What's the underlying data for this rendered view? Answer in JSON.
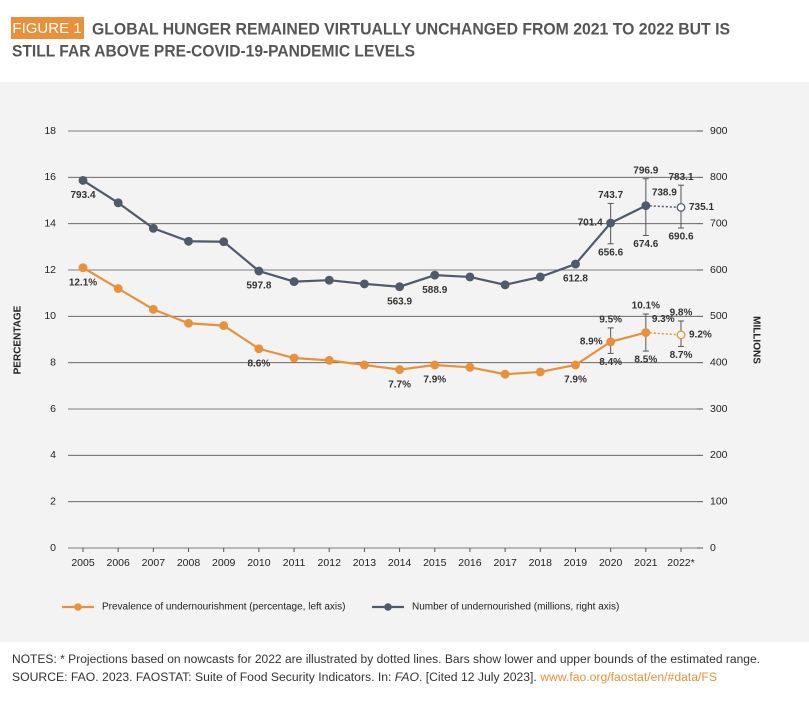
{
  "chart_data": {
    "type": "line",
    "badge": "FIGURE 1",
    "title_lines": [
      "GLOBAL HUNGER REMAINED VIRTUALLY UNCHANGED FROM 2021 TO 2022 BUT IS",
      "STILL FAR ABOVE PRE-COVID-19-PANDEMIC LEVELS"
    ],
    "ylabel": "PERCENTAGE",
    "y2label": "MILLIONS",
    "categories": [
      "2005",
      "2006",
      "2007",
      "2008",
      "2009",
      "2010",
      "2011",
      "2012",
      "2013",
      "2014",
      "2015",
      "2016",
      "2017",
      "2018",
      "2019",
      "2020",
      "2021",
      "2022*"
    ],
    "projected": [
      false,
      false,
      false,
      false,
      false,
      false,
      false,
      false,
      false,
      false,
      false,
      false,
      false,
      false,
      false,
      false,
      false,
      true
    ],
    "ylim": [
      0,
      18
    ],
    "yticks": [
      0,
      2,
      4,
      6,
      8,
      10,
      12,
      14,
      16,
      18
    ],
    "y2lim": [
      0,
      900
    ],
    "y2ticks": [
      0,
      100,
      200,
      300,
      400,
      500,
      600,
      700,
      800,
      900
    ],
    "grid": true,
    "series": [
      {
        "name": "Prevalence of undernourishment (percentage, left axis)",
        "color": "#e8913a",
        "axis": "y",
        "values": [
          12.1,
          11.2,
          10.3,
          9.7,
          9.6,
          8.6,
          8.2,
          8.1,
          7.9,
          7.7,
          7.9,
          7.8,
          7.5,
          7.6,
          7.9,
          8.9,
          9.3,
          9.2
        ],
        "value_labels": [
          "12.1%",
          null,
          null,
          null,
          null,
          "8.6%",
          null,
          null,
          null,
          "7.7%",
          "7.9%",
          null,
          null,
          null,
          "7.9%",
          "8.9%",
          "9.3%",
          "9.2%"
        ],
        "low": [
          null,
          null,
          null,
          null,
          null,
          null,
          null,
          null,
          null,
          null,
          null,
          null,
          null,
          null,
          null,
          8.4,
          8.5,
          8.7
        ],
        "high": [
          null,
          null,
          null,
          null,
          null,
          null,
          null,
          null,
          null,
          null,
          null,
          null,
          null,
          null,
          null,
          9.5,
          10.1,
          9.8
        ],
        "low_labels": [
          null,
          null,
          null,
          null,
          null,
          null,
          null,
          null,
          null,
          null,
          null,
          null,
          null,
          null,
          null,
          "8.4%",
          "8.5%",
          "8.7%"
        ],
        "high_labels": [
          null,
          null,
          null,
          null,
          null,
          null,
          null,
          null,
          null,
          null,
          null,
          null,
          null,
          null,
          null,
          "9.5%",
          "10.1%",
          "9.8%"
        ]
      },
      {
        "name": "Number of undernourished (millions, right axis)",
        "color": "#4f5b6b",
        "axis": "y2",
        "values": [
          793.4,
          745,
          690,
          662,
          661,
          597.8,
          575,
          578,
          570,
          563.9,
          588.9,
          585,
          568,
          585,
          612.8,
          701.4,
          738.9,
          735.1
        ],
        "value_labels": [
          "793.4",
          null,
          null,
          null,
          null,
          "597.8",
          null,
          null,
          null,
          "563.9",
          "588.9",
          null,
          null,
          null,
          "612.8",
          "701.4",
          "738.9",
          "735.1"
        ],
        "low": [
          null,
          null,
          null,
          null,
          null,
          null,
          null,
          null,
          null,
          null,
          null,
          null,
          null,
          null,
          null,
          656.6,
          674.6,
          690.6
        ],
        "high": [
          null,
          null,
          null,
          null,
          null,
          null,
          null,
          null,
          null,
          null,
          null,
          null,
          null,
          null,
          null,
          743.7,
          796.9,
          783.1
        ],
        "low_labels": [
          null,
          null,
          null,
          null,
          null,
          null,
          null,
          null,
          null,
          null,
          null,
          null,
          null,
          null,
          null,
          "656.6",
          "674.6",
          "690.6"
        ],
        "high_labels": [
          null,
          null,
          null,
          null,
          null,
          null,
          null,
          null,
          null,
          null,
          null,
          null,
          null,
          null,
          null,
          "743.7",
          "796.9",
          "783.1"
        ]
      }
    ],
    "notes": "NOTES: * Projections based on nowcasts for 2022 are illustrated by dotted lines. Bars show lower and upper bounds of the estimated range.",
    "source": [
      "SOURCE: FAO. 2023. FAOSTAT: Suite of Food Security Indicators. In: ",
      "FAO",
      ". [Cited 12 July 2023]. ",
      "www.fao.org/faostat/en/#data/FS"
    ]
  }
}
